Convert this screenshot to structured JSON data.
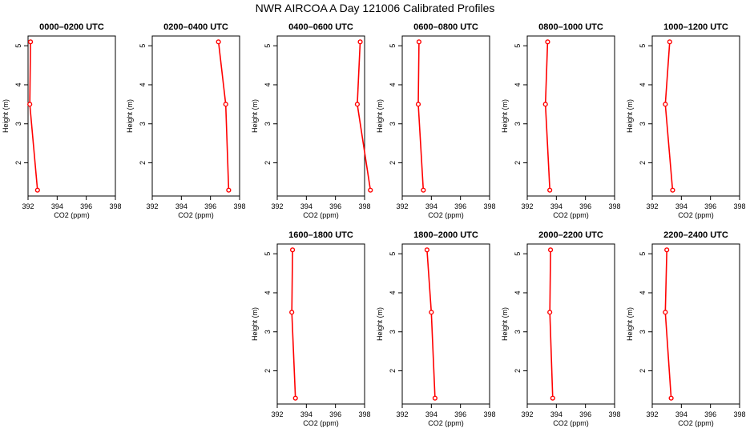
{
  "title": "NWR AIRCOA A  Day 121006  Calibrated Profiles",
  "colors": {
    "series": "#ff0000",
    "marker": "#ff0000",
    "axis": "#000000"
  },
  "chart_data": [
    {
      "type": "line",
      "title": "0000–0200 UTC",
      "xlabel": "CO2 (ppm)",
      "ylabel": "Height (m)",
      "xlim": [
        392,
        398
      ],
      "ylim": [
        1,
        5
      ],
      "xticks": [
        "392",
        "394",
        "396",
        "398"
      ],
      "yticks": [
        "2",
        "3",
        "4",
        "5"
      ],
      "points": [
        {
          "x": 392.17,
          "y": 5.1
        },
        {
          "x": 392.12,
          "y": 3.5
        },
        {
          "x": 392.65,
          "y": 1.3
        }
      ]
    },
    {
      "type": "line",
      "title": "0200–0400 UTC",
      "xlabel": "CO2 (ppm)",
      "ylabel": "Height (m)",
      "xlim": [
        392,
        398
      ],
      "ylim": [
        1,
        5
      ],
      "xticks": [
        "392",
        "394",
        "396",
        "398"
      ],
      "yticks": [
        "2",
        "3",
        "4",
        "5"
      ],
      "points": [
        {
          "x": 396.55,
          "y": 5.1
        },
        {
          "x": 397.05,
          "y": 3.5
        },
        {
          "x": 397.25,
          "y": 1.3
        }
      ]
    },
    {
      "type": "line",
      "title": "0400–0600 UTC",
      "xlabel": "CO2 (ppm)",
      "ylabel": "Height (m)",
      "xlim": [
        392,
        398
      ],
      "ylim": [
        1,
        5
      ],
      "xticks": [
        "392",
        "394",
        "396",
        "398"
      ],
      "yticks": [
        "2",
        "3",
        "4",
        "5"
      ],
      "points": [
        {
          "x": 397.7,
          "y": 5.1
        },
        {
          "x": 397.5,
          "y": 3.5
        },
        {
          "x": 398.4,
          "y": 1.3
        }
      ]
    },
    {
      "type": "line",
      "title": "0600–0800 UTC",
      "xlabel": "CO2 (ppm)",
      "ylabel": "Height (m)",
      "xlim": [
        392,
        398
      ],
      "ylim": [
        1,
        5
      ],
      "xticks": [
        "392",
        "394",
        "396",
        "398"
      ],
      "yticks": [
        "2",
        "3",
        "4",
        "5"
      ],
      "points": [
        {
          "x": 393.15,
          "y": 5.1
        },
        {
          "x": 393.1,
          "y": 3.5
        },
        {
          "x": 393.45,
          "y": 1.3
        }
      ]
    },
    {
      "type": "line",
      "title": "0800–1000 UTC",
      "xlabel": "CO2 (ppm)",
      "ylabel": "Height (m)",
      "xlim": [
        392,
        398
      ],
      "ylim": [
        1,
        5
      ],
      "xticks": [
        "392",
        "394",
        "396",
        "398"
      ],
      "yticks": [
        "2",
        "3",
        "4",
        "5"
      ],
      "points": [
        {
          "x": 393.4,
          "y": 5.1
        },
        {
          "x": 393.25,
          "y": 3.5
        },
        {
          "x": 393.55,
          "y": 1.3
        }
      ]
    },
    {
      "type": "line",
      "title": "1000–1200 UTC",
      "xlabel": "CO2 (ppm)",
      "ylabel": "Height (m)",
      "xlim": [
        392,
        398
      ],
      "ylim": [
        1,
        5
      ],
      "xticks": [
        "392",
        "394",
        "396",
        "398"
      ],
      "yticks": [
        "2",
        "3",
        "4",
        "5"
      ],
      "points": [
        {
          "x": 393.2,
          "y": 5.1
        },
        {
          "x": 392.9,
          "y": 3.5
        },
        {
          "x": 393.4,
          "y": 1.3
        }
      ]
    },
    {
      "type": "line",
      "title": "1600–1800 UTC",
      "xlabel": "CO2 (ppm)",
      "ylabel": "Height (m)",
      "xlim": [
        392,
        398
      ],
      "ylim": [
        1,
        5
      ],
      "xticks": [
        "392",
        "394",
        "396",
        "398"
      ],
      "yticks": [
        "2",
        "3",
        "4",
        "5"
      ],
      "points": [
        {
          "x": 393.05,
          "y": 5.1
        },
        {
          "x": 393.0,
          "y": 3.5
        },
        {
          "x": 393.25,
          "y": 1.3
        }
      ]
    },
    {
      "type": "line",
      "title": "1800–2000 UTC",
      "xlabel": "CO2 (ppm)",
      "ylabel": "Height (m)",
      "xlim": [
        392,
        398
      ],
      "ylim": [
        1,
        5
      ],
      "xticks": [
        "392",
        "394",
        "396",
        "398"
      ],
      "yticks": [
        "2",
        "3",
        "4",
        "5"
      ],
      "points": [
        {
          "x": 393.7,
          "y": 5.1
        },
        {
          "x": 394.0,
          "y": 3.5
        },
        {
          "x": 394.25,
          "y": 1.3
        }
      ]
    },
    {
      "type": "line",
      "title": "2000–2200 UTC",
      "xlabel": "CO2 (ppm)",
      "ylabel": "Height (m)",
      "xlim": [
        392,
        398
      ],
      "ylim": [
        1,
        5
      ],
      "xticks": [
        "392",
        "394",
        "396",
        "398"
      ],
      "yticks": [
        "2",
        "3",
        "4",
        "5"
      ],
      "points": [
        {
          "x": 393.6,
          "y": 5.1
        },
        {
          "x": 393.55,
          "y": 3.5
        },
        {
          "x": 393.75,
          "y": 1.3
        }
      ]
    },
    {
      "type": "line",
      "title": "2200–2400 UTC",
      "xlabel": "CO2 (ppm)",
      "ylabel": "Height (m)",
      "xlim": [
        392,
        398
      ],
      "ylim": [
        1,
        5
      ],
      "xticks": [
        "392",
        "394",
        "396",
        "398"
      ],
      "yticks": [
        "2",
        "3",
        "4",
        "5"
      ],
      "points": [
        {
          "x": 393.0,
          "y": 5.1
        },
        {
          "x": 392.9,
          "y": 3.5
        },
        {
          "x": 393.3,
          "y": 1.3
        }
      ]
    }
  ]
}
